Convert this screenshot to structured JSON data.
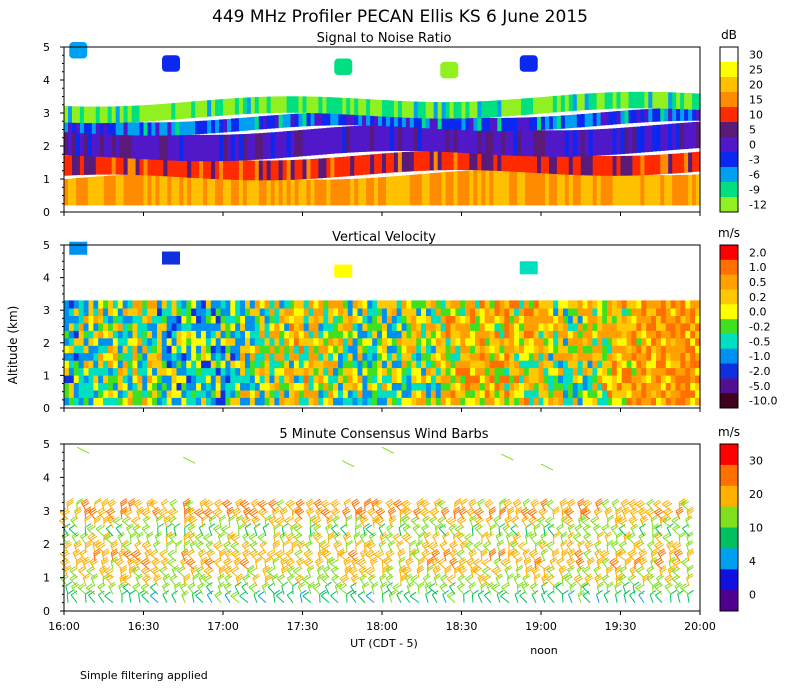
{
  "title": "449 MHz Profiler PECAN Ellis KS  6 June 2015",
  "ylabel": "Altitude (km)",
  "xlabel": "UT  (CDT - 5)",
  "x_annotation": "noon",
  "footnote": "Simple filtering applied",
  "x_ticks": [
    "16:00",
    "16:30",
    "17:00",
    "17:30",
    "18:00",
    "18:30",
    "19:00",
    "19:30",
    "20:00"
  ],
  "colors": {
    "background": "#ffffff",
    "axis": "#000000"
  },
  "chart_data": [
    {
      "type": "heatmap",
      "title": "Signal to Noise Ratio",
      "xlabel": "UT  (CDT - 5)",
      "ylabel": "Altitude (km)",
      "xlim": [
        "16:00",
        "20:00"
      ],
      "ylim": [
        0,
        5
      ],
      "y_ticks": [
        "0",
        "1",
        "2",
        "3",
        "4",
        "5"
      ],
      "colorbar": {
        "unit": "dB",
        "labels": [
          "30",
          "25",
          "20",
          "15",
          "10",
          "5",
          "0",
          "-3",
          "-6",
          "-9",
          "-12"
        ],
        "colors": [
          "#ffffff",
          "#ffff00",
          "#ffc000",
          "#ff8c00",
          "#ff2a00",
          "#5a1a78",
          "#5018c8",
          "#0a28f0",
          "#00a0f0",
          "#00e080",
          "#90f020"
        ]
      },
      "layers": [
        {
          "altitude_km": [
            0.2,
            1.0
          ],
          "value_db": 20
        },
        {
          "altitude_km": [
            1.0,
            1.6
          ],
          "value_db": 12
        },
        {
          "altitude_km": [
            1.6,
            2.4
          ],
          "value_db": 3
        },
        {
          "altitude_km": [
            2.4,
            2.8
          ],
          "value_db": -3
        },
        {
          "altitude_km": [
            2.8,
            3.3
          ],
          "value_db": -9
        }
      ],
      "upper_patches": [
        {
          "time": "16:05",
          "altitude_km": 4.9,
          "value_db": -6
        },
        {
          "time": "16:40",
          "altitude_km": 4.5,
          "value_db": -3
        },
        {
          "time": "17:45",
          "altitude_km": 4.4,
          "value_db": -9
        },
        {
          "time": "18:25",
          "altitude_km": 4.3,
          "value_db": -12
        },
        {
          "time": "18:55",
          "altitude_km": 4.5,
          "value_db": -3
        }
      ]
    },
    {
      "type": "heatmap",
      "title": "Vertical Velocity",
      "xlim": [
        "16:00",
        "20:00"
      ],
      "ylim": [
        0,
        5
      ],
      "y_ticks": [
        "0",
        "1",
        "2",
        "3",
        "4",
        "5"
      ],
      "colorbar": {
        "unit": "m/s",
        "labels": [
          "2.0",
          "1.0",
          "0.5",
          "0.2",
          "0.0",
          "-0.2",
          "-0.5",
          "-1.0",
          "-2.0",
          "-5.0",
          "-10.0"
        ],
        "colors": [
          "#ff0000",
          "#ff7000",
          "#ffa000",
          "#ffc800",
          "#ffff00",
          "#40e020",
          "#00e0c0",
          "#0090f0",
          "#1030e0",
          "#501090",
          "#400020"
        ]
      },
      "data_top_km": 3.3,
      "upper_patches": [
        {
          "time": "16:05",
          "altitude_km": 4.9,
          "value_ms": -1.0
        },
        {
          "time": "16:40",
          "altitude_km": 4.6,
          "value_ms": -2.0
        },
        {
          "time": "17:45",
          "altitude_km": 4.2,
          "value_ms": 0.0
        },
        {
          "time": "18:55",
          "altitude_km": 4.3,
          "value_ms": -0.5
        }
      ]
    },
    {
      "type": "scatter",
      "title": "5 Minute Consensus Wind Barbs",
      "xlim": [
        "16:00",
        "20:00"
      ],
      "ylim": [
        0,
        5
      ],
      "y_ticks": [
        "0",
        "1",
        "2",
        "3",
        "4",
        "5"
      ],
      "colorbar": {
        "unit": "m/s",
        "labels": [
          "30",
          "20",
          "10",
          "4",
          "0"
        ],
        "colors": [
          "#ff0000",
          "#ff7000",
          "#ffb000",
          "#80e020",
          "#00c060",
          "#00a0f0",
          "#1010e0",
          "#500090"
        ]
      },
      "levels_km": [
        0.25,
        0.5,
        0.75,
        1.0,
        1.25,
        1.5,
        1.75,
        2.0,
        2.25,
        2.5,
        2.75,
        3.0
      ],
      "speed_by_level_ms": [
        8,
        11,
        13,
        15,
        16,
        16,
        15,
        13,
        10,
        14,
        18,
        16
      ],
      "direction_deg": 200
    }
  ]
}
